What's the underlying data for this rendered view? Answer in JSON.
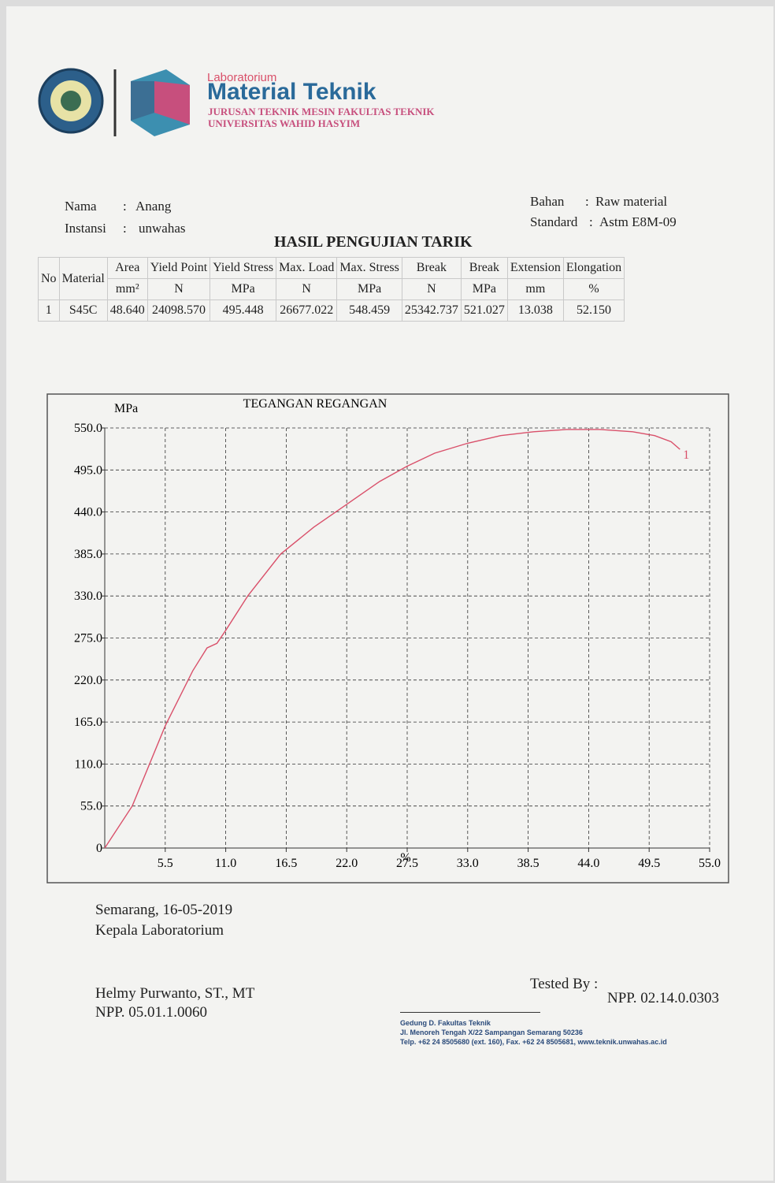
{
  "header": {
    "lab_small": "Laboratorium",
    "lab_name": "Material Teknik",
    "line1": "JURUSAN TEKNIK MESIN FAKULTAS TEKNIK",
    "line2": "UNIVERSITAS WAHID HASYIM"
  },
  "info": {
    "nama_label": "Nama",
    "nama": "Anang",
    "instansi_label": "Instansi",
    "instansi": "unwahas",
    "bahan_label": "Bahan",
    "bahan": "Raw material",
    "standard_label": "Standard",
    "standard": "Astm E8M-09"
  },
  "table": {
    "title": "HASIL PENGUJIAN TARIK",
    "columns": [
      "No",
      "Material",
      "Area",
      "Yield Point",
      "Yield Stress",
      "Max. Load",
      "Max. Stress",
      "Break",
      "Break",
      "Extension",
      "Elongation"
    ],
    "units": [
      "mm²",
      "N",
      "MPa",
      "N",
      "MPa",
      "N",
      "MPa",
      "mm",
      "%"
    ],
    "rows": [
      [
        "1",
        "S45C",
        "48.640",
        "24098.570",
        "495.448",
        "26677.022",
        "548.459",
        "25342.737",
        "521.027",
        "13.038",
        "52.150"
      ]
    ]
  },
  "chart_data": {
    "type": "line",
    "title": "TEGANGAN REGANGAN",
    "y_label": "MPa",
    "x_label": "%",
    "xlim": [
      0,
      55
    ],
    "ylim": [
      0,
      550
    ],
    "xticks": [
      5.5,
      {
        "value": 11,
        "label": "11.0"
      },
      16.5,
      {
        "value": 22,
        "label": "22.0"
      },
      27.5,
      {
        "value": 33,
        "label": "33.0"
      },
      38.5,
      {
        "value": 44,
        "label": "44.0"
      },
      49.5,
      {
        "value": 55,
        "label": "55.0"
      }
    ],
    "yticks": [
      0,
      {
        "value": 55,
        "label": "55.0"
      },
      {
        "value": 110,
        "label": "110.0"
      },
      {
        "value": 165,
        "label": "165.0"
      },
      {
        "value": 220,
        "label": "220.0"
      },
      {
        "value": 275,
        "label": "275.0"
      },
      {
        "value": 330,
        "label": "330.0"
      },
      {
        "value": 385,
        "label": "385.0"
      },
      {
        "value": 440,
        "label": "440.0"
      },
      {
        "value": 495,
        "label": "495.0"
      },
      {
        "value": 550,
        "label": "550.0"
      }
    ],
    "grid": true,
    "x": [
      0,
      2.5,
      5.5,
      8,
      9.3,
      10.2,
      11,
      13,
      16,
      19,
      22,
      25,
      27.5,
      30,
      33,
      36,
      39,
      42,
      45,
      48,
      50,
      51.5,
      52.3
    ],
    "series": [
      {
        "name": "1",
        "color": "#d9506a",
        "values": [
          0,
          55,
          160,
          232,
          262,
          268,
          285,
          330,
          385,
          420,
          450,
          480,
          500,
          517,
          530,
          540,
          545,
          548,
          548,
          545,
          540,
          532,
          522
        ]
      }
    ]
  },
  "footer": {
    "place_date": "Semarang, 16-05-2019",
    "role": "Kepala Laboratorium",
    "signer": "Helmy Purwanto, ST., MT",
    "signer_npp": "NPP. 05.01.1.0060",
    "tested_by": "Tested By :",
    "tester_npp": "NPP. 02.14.0.0303",
    "address1": "Gedung D. Fakultas Teknik",
    "address2": "Jl. Menoreh Tengah X/22 Sampangan Semarang 50236",
    "address3": "Telp. +62 24 8505680 (ext. 160), Fax. +62 24 8505681, www.teknik.unwahas.ac.id"
  }
}
